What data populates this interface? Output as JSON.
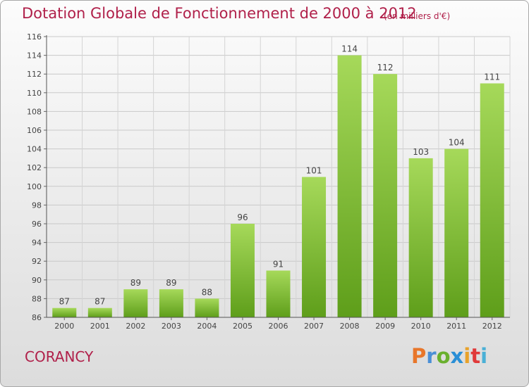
{
  "header": {
    "title": "Dotation Globale de Fonctionnement de 2000 à 2012",
    "unit": "(en milliers d'€)"
  },
  "footer": {
    "commune": "CORANCY",
    "logo": "Proxiti"
  },
  "colors": {
    "title": "#b0204a",
    "bar_top": "#a6d95a",
    "bar_bottom": "#5e9e1a",
    "logo_letters": [
      "#e8762a",
      "#4a8fd6",
      "#6ab02e",
      "#2a8fd6",
      "#e8a22a",
      "#e03a3a",
      "#4ab0d6"
    ]
  },
  "chart_data": {
    "type": "bar",
    "categories": [
      "2000",
      "2001",
      "2002",
      "2003",
      "2004",
      "2005",
      "2006",
      "2007",
      "2008",
      "2009",
      "2010",
      "2011",
      "2012"
    ],
    "values": [
      87,
      87,
      89,
      89,
      88,
      96,
      91,
      101,
      114,
      112,
      103,
      104,
      111
    ],
    "ylim": [
      86,
      116
    ],
    "yticks": [
      86,
      88,
      90,
      92,
      94,
      96,
      98,
      100,
      102,
      104,
      106,
      108,
      110,
      112,
      114,
      116
    ],
    "grid": true
  }
}
